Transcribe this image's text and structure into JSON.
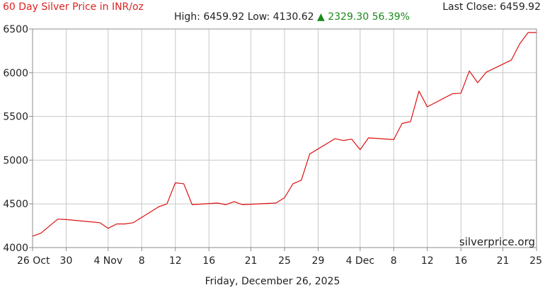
{
  "header": {
    "title": "60 Day Silver Price in INR/oz",
    "last_close_label": "Last Close: 6459.92",
    "high_low": "High: 6459.92 Low: 4130.62",
    "change": "▲ 2329.30 56.39%"
  },
  "watermark": "silverprice.org",
  "footer_date": "Friday, December 26, 2025",
  "colors": {
    "line": "#dd1111",
    "title": "#dd2222",
    "change": "#1a8a1a",
    "grid": "#c8c8c8"
  },
  "chart_data": {
    "type": "line",
    "ylim": [
      4000,
      6500
    ],
    "yticks": [
      4000,
      4500,
      5000,
      5500,
      6000,
      6500
    ],
    "xlim": [
      "2025-10-26",
      "2025-12-25"
    ],
    "xticks": [
      {
        "date": "2025-10-26",
        "label": "26 Oct"
      },
      {
        "date": "2025-10-30",
        "label": "30"
      },
      {
        "date": "2025-11-04",
        "label": "4 Nov"
      },
      {
        "date": "2025-11-08",
        "label": "8"
      },
      {
        "date": "2025-11-12",
        "label": "12"
      },
      {
        "date": "2025-11-16",
        "label": "16"
      },
      {
        "date": "2025-11-21",
        "label": "21"
      },
      {
        "date": "2025-11-25",
        "label": "25"
      },
      {
        "date": "2025-11-29",
        "label": "29"
      },
      {
        "date": "2025-12-04",
        "label": "4 Dec"
      },
      {
        "date": "2025-12-08",
        "label": "8"
      },
      {
        "date": "2025-12-12",
        "label": "12"
      },
      {
        "date": "2025-12-16",
        "label": "16"
      },
      {
        "date": "2025-12-21",
        "label": "21"
      },
      {
        "date": "2025-12-25",
        "label": "25"
      }
    ],
    "grid": true,
    "series": [
      {
        "x": [
          "2025-10-26",
          "2025-10-27",
          "2025-10-29",
          "2025-10-30",
          "2025-11-03",
          "2025-11-04",
          "2025-11-05",
          "2025-11-06",
          "2025-11-07",
          "2025-11-10",
          "2025-11-11",
          "2025-11-12",
          "2025-11-13",
          "2025-11-14",
          "2025-11-17",
          "2025-11-18",
          "2025-11-19",
          "2025-11-20",
          "2025-11-24",
          "2025-11-25",
          "2025-11-26",
          "2025-11-27",
          "2025-11-28",
          "2025-12-01",
          "2025-12-02",
          "2025-12-03",
          "2025-12-04",
          "2025-12-05",
          "2025-12-08",
          "2025-12-09",
          "2025-12-10",
          "2025-12-11",
          "2025-12-12",
          "2025-12-15",
          "2025-12-16",
          "2025-12-17",
          "2025-12-18",
          "2025-12-19",
          "2025-12-22",
          "2025-12-23",
          "2025-12-24",
          "2025-12-25"
        ],
        "y": [
          4130,
          4165,
          4325,
          4320,
          4285,
          4220,
          4270,
          4270,
          4285,
          4465,
          4500,
          4740,
          4730,
          4490,
          4510,
          4490,
          4525,
          4490,
          4510,
          4570,
          4730,
          4770,
          5070,
          5245,
          5225,
          5240,
          5120,
          5255,
          5235,
          5420,
          5440,
          5790,
          5610,
          5760,
          5765,
          6020,
          5885,
          6005,
          6145,
          6330,
          6459.92,
          6459.92
        ]
      }
    ]
  }
}
